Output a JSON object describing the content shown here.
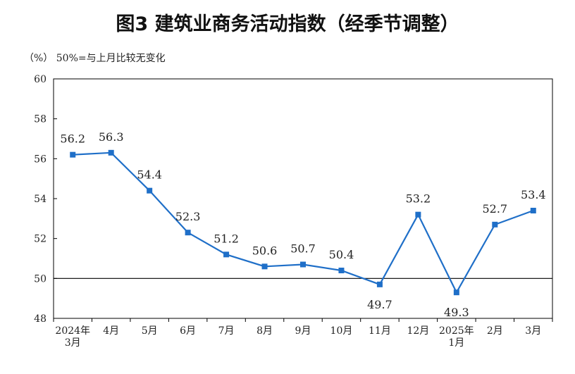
{
  "chart_data": {
    "type": "line",
    "title": "图3  建筑业商务活动指数（经季节调整）",
    "unit_note": "（%）  50%=与上月比较无变化",
    "categories": [
      [
        "2024年",
        "3月"
      ],
      [
        "4月"
      ],
      [
        "5月"
      ],
      [
        "6月"
      ],
      [
        "7月"
      ],
      [
        "8月"
      ],
      [
        "9月"
      ],
      [
        "10月"
      ],
      [
        "11月"
      ],
      [
        "12月"
      ],
      [
        "2025年",
        "1月"
      ],
      [
        "2月"
      ],
      [
        "3月"
      ]
    ],
    "series": [
      {
        "values": [
          56.2,
          56.3,
          54.4,
          52.3,
          51.2,
          50.6,
          50.7,
          50.4,
          49.7,
          53.2,
          49.3,
          52.7,
          53.4
        ]
      }
    ],
    "label_text": [
      "56.2",
      "56.3",
      "54.4",
      "52.3",
      "51.2",
      "50.6",
      "50.7",
      "50.4",
      "49.7",
      "53.2",
      "49.3",
      "52.7",
      "53.4"
    ],
    "label_position": [
      "above",
      "above",
      "above",
      "above",
      "above",
      "above",
      "above",
      "above",
      "below",
      "above",
      "below",
      "above",
      "above"
    ],
    "yticks": [
      48,
      50,
      52,
      54,
      56,
      58,
      60
    ],
    "ylim": [
      48,
      60
    ],
    "reference_line": 50,
    "color": "#1f6fc8",
    "grid": false
  }
}
